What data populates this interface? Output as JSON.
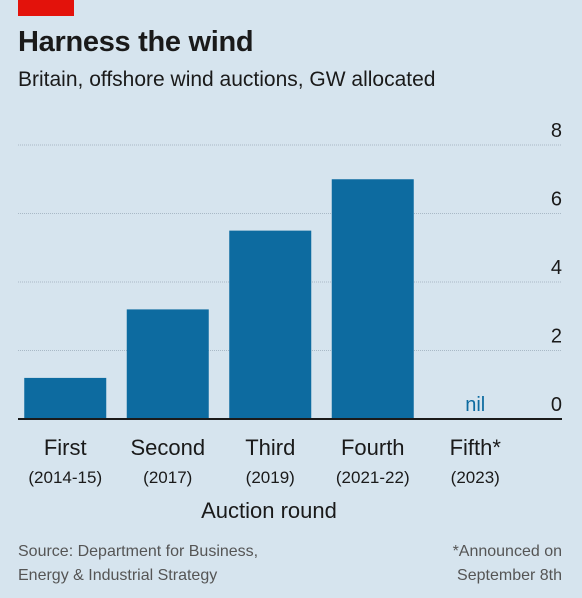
{
  "header": {
    "title": "Harness the wind",
    "subtitle": "Britain, offshore wind auctions, GW allocated"
  },
  "chart_data": {
    "type": "bar",
    "categories": [
      "First",
      "Second",
      "Third",
      "Fourth",
      "Fifth*"
    ],
    "category_periods": [
      "(2014-15)",
      "(2017)",
      "(2019)",
      "(2021-22)",
      "(2023)"
    ],
    "values": [
      1.2,
      3.2,
      5.5,
      7.0,
      0
    ],
    "value_labels": [
      "",
      "",
      "",
      "",
      "nil"
    ],
    "xlabel": "Auction round",
    "ylabel": "",
    "ylim": [
      0,
      8
    ],
    "yticks": [
      0,
      2,
      4,
      6,
      8
    ],
    "grid": true,
    "colors": {
      "bar": "#0d6ba0",
      "grid": "#a9b9c6",
      "baseline": "#1a1a1a",
      "nil_label": "#0d6ba0"
    }
  },
  "footer": {
    "source_lines": [
      "Source: Department for Business,",
      "Energy & Industrial Strategy"
    ],
    "note_lines": [
      "*Announced on",
      "September 8th"
    ]
  }
}
